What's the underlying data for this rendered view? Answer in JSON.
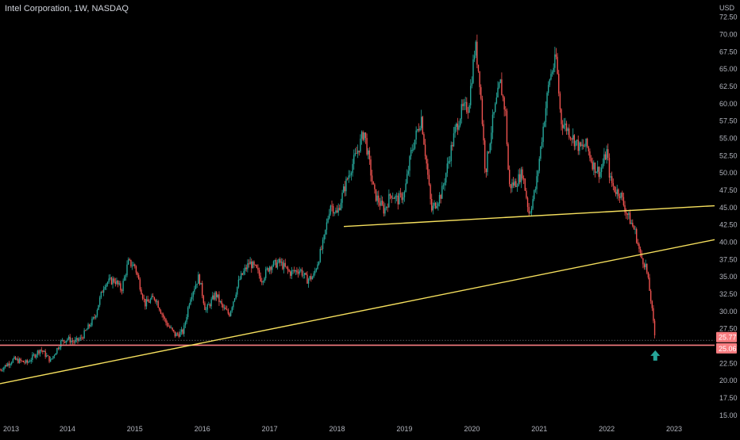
{
  "header": {
    "symbol_title": "Intel Corporation, 1W, NASDAQ",
    "currency": "USD"
  },
  "colors": {
    "background": "#000000",
    "up": "#26a69a",
    "down": "#ef5350",
    "trendline": "#f6e05e",
    "support": "#f77c80",
    "axis_text": "#b2b5be",
    "arrow": "#26a69a"
  },
  "chart_data": {
    "type": "candlestick",
    "title": "Intel Corporation, 1W, NASDAQ",
    "xlabel": "",
    "ylabel": "USD",
    "ylim": [
      14,
      74
    ],
    "xlim": [
      2013.0,
      2023.6
    ],
    "grid": false,
    "x_ticks": [
      "2013",
      "2014",
      "2015",
      "2016",
      "2017",
      "2018",
      "2019",
      "2020",
      "2021",
      "2022",
      "2023"
    ],
    "y_ticks": [
      "15.00",
      "17.50",
      "20.00",
      "22.50",
      "25.00",
      "27.50",
      "30.00",
      "32.50",
      "35.00",
      "37.50",
      "40.00",
      "42.50",
      "45.00",
      "47.50",
      "50.00",
      "52.50",
      "55.00",
      "57.50",
      "60.00",
      "62.50",
      "65.00",
      "67.50",
      "70.00",
      "72.50"
    ],
    "price_labels": [
      {
        "label": "25.77",
        "value": 25.77
      },
      {
        "label": "25.06",
        "value": 25.06
      }
    ],
    "horizontal_lines": [
      {
        "value": 25.06,
        "color": "#f77c80"
      }
    ],
    "trendlines": [
      {
        "from": [
          2013.0,
          19.5
        ],
        "to": [
          2023.6,
          40.3
        ]
      },
      {
        "from": [
          2018.1,
          42.2
        ],
        "to": [
          2023.6,
          45.2
        ]
      }
    ],
    "annotation_arrow": {
      "x": 2022.72,
      "y": 23.4,
      "direction": "up"
    },
    "price_path": [
      [
        2013.0,
        21.5
      ],
      [
        2013.2,
        23.0
      ],
      [
        2013.4,
        22.5
      ],
      [
        2013.6,
        24.5
      ],
      [
        2013.75,
        22.8
      ],
      [
        2013.9,
        25.5
      ],
      [
        2014.0,
        26.0
      ],
      [
        2014.1,
        25.5
      ],
      [
        2014.2,
        26.0
      ],
      [
        2014.4,
        29.0
      ],
      [
        2014.55,
        34.0
      ],
      [
        2014.7,
        34.5
      ],
      [
        2014.8,
        33.0
      ],
      [
        2014.9,
        37.0
      ],
      [
        2015.0,
        36.5
      ],
      [
        2015.15,
        31.0
      ],
      [
        2015.3,
        32.0
      ],
      [
        2015.45,
        28.5
      ],
      [
        2015.6,
        26.5
      ],
      [
        2015.72,
        27.0
      ],
      [
        2015.82,
        32.0
      ],
      [
        2015.95,
        35.0
      ],
      [
        2016.05,
        30.0
      ],
      [
        2016.2,
        32.5
      ],
      [
        2016.3,
        30.5
      ],
      [
        2016.4,
        29.5
      ],
      [
        2016.55,
        34.5
      ],
      [
        2016.7,
        37.0
      ],
      [
        2016.8,
        36.0
      ],
      [
        2016.88,
        34.5
      ],
      [
        2017.0,
        36.5
      ],
      [
        2017.15,
        37.0
      ],
      [
        2017.3,
        35.5
      ],
      [
        2017.45,
        36.0
      ],
      [
        2017.55,
        34.5
      ],
      [
        2017.65,
        35.0
      ],
      [
        2017.8,
        40.0
      ],
      [
        2017.9,
        45.5
      ],
      [
        2018.0,
        44.0
      ],
      [
        2018.1,
        47.5
      ],
      [
        2018.2,
        50.5
      ],
      [
        2018.3,
        53.0
      ],
      [
        2018.4,
        56.0
      ],
      [
        2018.45,
        53.0
      ],
      [
        2018.55,
        47.0
      ],
      [
        2018.7,
        44.5
      ],
      [
        2018.8,
        47.0
      ],
      [
        2018.9,
        46.0
      ],
      [
        2019.0,
        47.0
      ],
      [
        2019.1,
        53.0
      ],
      [
        2019.25,
        58.0
      ],
      [
        2019.33,
        51.0
      ],
      [
        2019.4,
        44.5
      ],
      [
        2019.55,
        47.0
      ],
      [
        2019.65,
        51.5
      ],
      [
        2019.75,
        56.0
      ],
      [
        2019.85,
        59.0
      ],
      [
        2019.95,
        59.5
      ],
      [
        2020.05,
        68.5
      ],
      [
        2020.12,
        63.0
      ],
      [
        2020.2,
        50.0
      ],
      [
        2020.3,
        57.0
      ],
      [
        2020.42,
        63.0
      ],
      [
        2020.5,
        58.5
      ],
      [
        2020.55,
        48.0
      ],
      [
        2020.65,
        48.5
      ],
      [
        2020.75,
        50.0
      ],
      [
        2020.85,
        44.0
      ],
      [
        2020.95,
        48.0
      ],
      [
        2021.05,
        56.0
      ],
      [
        2021.15,
        63.5
      ],
      [
        2021.25,
        66.5
      ],
      [
        2021.32,
        57.5
      ],
      [
        2021.4,
        56.5
      ],
      [
        2021.5,
        55.0
      ],
      [
        2021.6,
        53.5
      ],
      [
        2021.7,
        54.0
      ],
      [
        2021.8,
        51.0
      ],
      [
        2021.9,
        50.0
      ],
      [
        2022.0,
        53.0
      ],
      [
        2022.05,
        49.0
      ],
      [
        2022.12,
        47.5
      ],
      [
        2022.2,
        47.0
      ],
      [
        2022.28,
        44.5
      ],
      [
        2022.35,
        43.0
      ],
      [
        2022.42,
        41.5
      ],
      [
        2022.5,
        38.0
      ],
      [
        2022.58,
        36.5
      ],
      [
        2022.65,
        32.0
      ],
      [
        2022.72,
        25.77
      ]
    ]
  }
}
